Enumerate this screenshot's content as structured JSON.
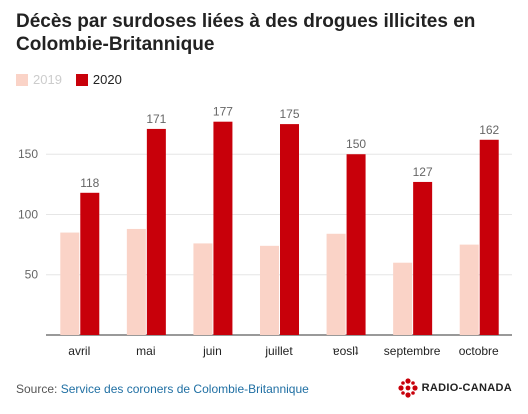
{
  "title": "Décès par surdoses liées à des drogues illicites en Colombie-Britannique",
  "source": {
    "prefix": "Source: ",
    "link_text": "Service des coroners de Colombie-Britannique"
  },
  "brand": {
    "name": "RADIO-CANADA"
  },
  "colors": {
    "series_2019": "#fad3c7",
    "series_2020": "#c8000a",
    "grid": "#e6e6e6",
    "axis": "#333333"
  },
  "chart_data": {
    "type": "bar",
    "title": "Décès par surdoses liées à des drogues illicites en Colombie-Britannique",
    "categories": [
      "avril",
      "mai",
      "juin",
      "juillet",
      "ɐoslʇ",
      "septembre",
      "octobre"
    ],
    "series": [
      {
        "name": "2019",
        "values": [
          85,
          88,
          76,
          74,
          84,
          60,
          75
        ]
      },
      {
        "name": "2020",
        "values": [
          118,
          171,
          177,
          175,
          150,
          127,
          162
        ]
      }
    ],
    "data_labels_series": "2020",
    "yticks": [
      50,
      100,
      150
    ],
    "ylim": [
      0,
      195
    ],
    "xlabel": "",
    "ylabel": "",
    "grid": true,
    "legend_position": "top-left"
  }
}
